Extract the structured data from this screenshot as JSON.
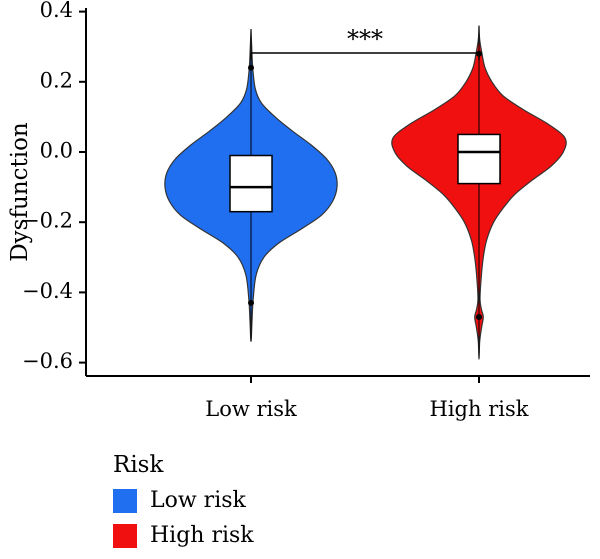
{
  "chart_data": {
    "type": "violin",
    "ylabel": "Dysfunction",
    "ylim": [
      -0.65,
      0.4
    ],
    "yticks": [
      0.4,
      0.2,
      0.0,
      -0.2,
      -0.4,
      -0.6
    ],
    "ytick_labels": [
      "0.4",
      "0.2",
      "0.0",
      "−0.2",
      "−0.4",
      "−0.6"
    ],
    "categories": [
      "Low risk",
      "High risk"
    ],
    "significance": "***",
    "legend": {
      "title": "Risk",
      "position": "bottom-left",
      "entries": [
        {
          "label": "Low risk",
          "color": "#1f6ff0"
        },
        {
          "label": "High risk",
          "color": "#f01010"
        }
      ]
    },
    "series": [
      {
        "category": "Low risk",
        "color": "#1f6ff0",
        "min": -0.54,
        "max": 0.35,
        "whisker_low": -0.43,
        "whisker_high": 0.24,
        "q1": -0.17,
        "median": -0.1,
        "q3": -0.01,
        "outliers": [
          0.24,
          -0.43
        ],
        "density": [
          [
            0.35,
            0.0
          ],
          [
            0.3,
            0.008
          ],
          [
            0.24,
            0.02
          ],
          [
            0.18,
            0.05
          ],
          [
            0.14,
            0.12
          ],
          [
            0.1,
            0.28
          ],
          [
            0.06,
            0.48
          ],
          [
            0.02,
            0.7
          ],
          [
            -0.02,
            0.88
          ],
          [
            -0.06,
            0.98
          ],
          [
            -0.1,
            1.0
          ],
          [
            -0.14,
            0.95
          ],
          [
            -0.18,
            0.82
          ],
          [
            -0.22,
            0.58
          ],
          [
            -0.26,
            0.32
          ],
          [
            -0.3,
            0.15
          ],
          [
            -0.35,
            0.06
          ],
          [
            -0.42,
            0.025
          ],
          [
            -0.48,
            0.012
          ],
          [
            -0.54,
            0.0
          ]
        ]
      },
      {
        "category": "High risk",
        "color": "#f01010",
        "min": -0.59,
        "max": 0.36,
        "whisker_low": -0.47,
        "whisker_high": 0.28,
        "q1": -0.09,
        "median": 0.0,
        "q3": 0.05,
        "outliers": [
          0.28,
          -0.47
        ],
        "density": [
          [
            0.36,
            0.0
          ],
          [
            0.32,
            0.008
          ],
          [
            0.28,
            0.035
          ],
          [
            0.24,
            0.07
          ],
          [
            0.2,
            0.15
          ],
          [
            0.16,
            0.28
          ],
          [
            0.12,
            0.52
          ],
          [
            0.08,
            0.8
          ],
          [
            0.04,
            1.0
          ],
          [
            0.0,
            0.98
          ],
          [
            -0.04,
            0.84
          ],
          [
            -0.08,
            0.62
          ],
          [
            -0.12,
            0.42
          ],
          [
            -0.16,
            0.28
          ],
          [
            -0.2,
            0.17
          ],
          [
            -0.25,
            0.09
          ],
          [
            -0.3,
            0.05
          ],
          [
            -0.36,
            0.025
          ],
          [
            -0.42,
            0.012
          ],
          [
            -0.45,
            0.03
          ],
          [
            -0.47,
            0.05
          ],
          [
            -0.5,
            0.03
          ],
          [
            -0.54,
            0.008
          ],
          [
            -0.59,
            0.0
          ]
        ]
      }
    ]
  }
}
